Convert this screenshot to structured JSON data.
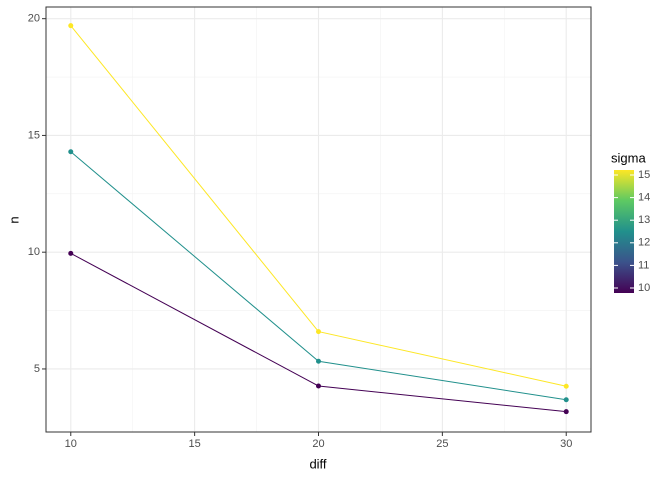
{
  "chart_data": {
    "type": "line",
    "x_label": "diff",
    "y_label": "n",
    "x": [
      10,
      20,
      30
    ],
    "series": [
      {
        "color": "#440154",
        "values": [
          9.95,
          4.27,
          3.17
        ]
      },
      {
        "color": "#21908c",
        "values": [
          14.3,
          5.33,
          3.68
        ]
      },
      {
        "color": "#fde725",
        "values": [
          19.7,
          6.6,
          4.26
        ]
      }
    ],
    "xlim": [
      9.0,
      31.0
    ],
    "xticks": [
      10,
      15,
      20,
      25,
      30
    ],
    "xminor": [
      12.5,
      17.5,
      22.5,
      27.5
    ],
    "ylim": [
      2.3,
      20.5
    ],
    "yticks": [
      5,
      10,
      15,
      20
    ],
    "yminor": [
      7.5,
      12.5,
      17.5
    ],
    "grid": true,
    "legend": {
      "title": "sigma",
      "limits": [
        10,
        15
      ],
      "ticks": [
        10,
        11,
        12,
        13,
        14,
        15
      ],
      "colors": [
        "#440154",
        "#3b528b",
        "#21908c",
        "#5dc963",
        "#fde725"
      ]
    }
  }
}
